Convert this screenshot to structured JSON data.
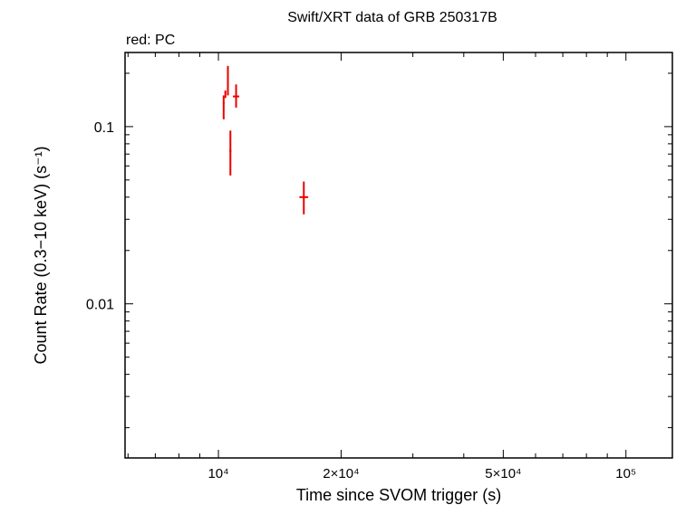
{
  "chart_data": {
    "type": "scatter",
    "title": "Swift/XRT data of GRB 250317B",
    "subtitle": "red: PC",
    "xlabel": "Time since SVOM trigger (s)",
    "ylabel": "Count Rate (0.3−10 keV) (s⁻¹)",
    "xscale": "log",
    "yscale": "log",
    "xlim": [
      5900,
      130000
    ],
    "ylim": [
      0.00135,
      0.262
    ],
    "x_ticks": [
      {
        "value": 10000,
        "label": "10⁴"
      },
      {
        "value": 20000,
        "label": "2×10⁴"
      },
      {
        "value": 50000,
        "label": "5×10⁴"
      },
      {
        "value": 100000,
        "label": "10⁵"
      }
    ],
    "y_ticks": [
      {
        "value": 0.1,
        "label": "0.1"
      },
      {
        "value": 0.01,
        "label": "0.01"
      }
    ],
    "grid": false,
    "series": [
      {
        "color": "#ee0000",
        "points": [
          {
            "x": 10300,
            "xerr": [
              50,
              50
            ],
            "y": 0.135,
            "yerr": [
              0.025,
              0.015
            ]
          },
          {
            "x": 10400,
            "xerr": [
              50,
              50
            ],
            "y": 0.155,
            "yerr": [
              0.01,
              0.005
            ]
          },
          {
            "x": 10550,
            "xerr": [
              50,
              50
            ],
            "y": 0.18,
            "yerr": [
              0.03,
              0.04
            ]
          },
          {
            "x": 10700,
            "xerr": [
              60,
              60
            ],
            "y": 0.073,
            "yerr": [
              0.02,
              0.022
            ]
          },
          {
            "x": 11050,
            "xerr": [
              200,
              200
            ],
            "y": 0.148,
            "yerr": [
              0.02,
              0.025
            ]
          },
          {
            "x": 16200,
            "xerr": [
              400,
              400
            ],
            "y": 0.04,
            "yerr": [
              0.008,
              0.009
            ]
          }
        ]
      }
    ]
  }
}
